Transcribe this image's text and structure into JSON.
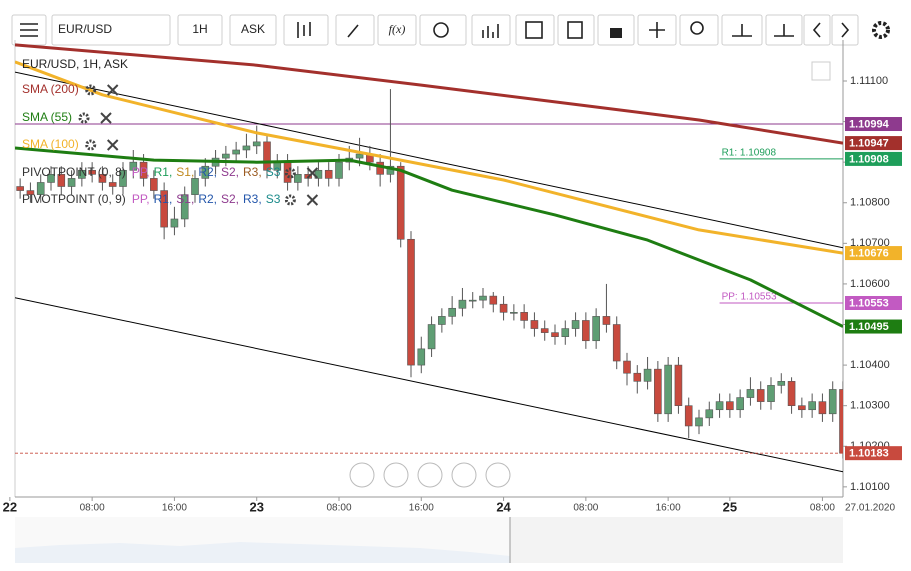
{
  "toolbar": {
    "symbol": "EUR/USD",
    "interval": "1H",
    "side": "ASK",
    "fx": "f(x)"
  },
  "chart_data": {
    "type": "candlestick",
    "title": "EUR/USD, 1H, ASK",
    "date_label": "27.01.2020",
    "up_color": "#5f9e74",
    "down_color": "#c84a3e",
    "xlim": [
      0.5,
      81
    ],
    "ylim": [
      1.10075,
      1.11201
    ],
    "xticks": [
      {
        "value": 0,
        "label": "22"
      },
      {
        "value": 8,
        "label": "08:00"
      },
      {
        "value": 16,
        "label": "16:00"
      },
      {
        "value": 24,
        "label": "23"
      },
      {
        "value": 32,
        "label": "08:00"
      },
      {
        "value": 40,
        "label": "16:00"
      },
      {
        "value": 48,
        "label": "24"
      },
      {
        "value": 56,
        "label": "08:00"
      },
      {
        "value": 64,
        "label": "16:00"
      },
      {
        "value": 70,
        "label": "25"
      },
      {
        "value": 79,
        "label": "08:00"
      }
    ],
    "yticks": [
      {
        "value": 1.101,
        "label": "1.10100"
      },
      {
        "value": 1.102,
        "label": "1.10200"
      },
      {
        "value": 1.103,
        "label": "1.10300"
      },
      {
        "value": 1.104,
        "label": "1.10400"
      },
      {
        "value": 1.105,
        "label": "1.10500"
      },
      {
        "value": 1.106,
        "label": "1.10600"
      },
      {
        "value": 1.107,
        "label": "1.10700"
      },
      {
        "value": 1.108,
        "label": "1.10800"
      },
      {
        "value": 1.109,
        "label": "1.10900"
      },
      {
        "value": 1.11,
        "label": "1.11000"
      },
      {
        "value": 1.111,
        "label": "1.11100"
      }
    ],
    "x": [
      1,
      2,
      3,
      4,
      5,
      6,
      7,
      8,
      9,
      10,
      11,
      12,
      13,
      14,
      15,
      16,
      17,
      18,
      19,
      20,
      21,
      22,
      23,
      24,
      25,
      26,
      27,
      28,
      29,
      30,
      31,
      32,
      33,
      34,
      35,
      36,
      37,
      38,
      39,
      40,
      41,
      42,
      43,
      44,
      45,
      46,
      47,
      48,
      49,
      50,
      51,
      52,
      53,
      54,
      55,
      56,
      57,
      58,
      59,
      60,
      61,
      62,
      63,
      64,
      65,
      66,
      67,
      68,
      69,
      70,
      71,
      72,
      73,
      74,
      75,
      76,
      77,
      78,
      79,
      80,
      81
    ],
    "ohlc": [
      [
        1.1084,
        1.1086,
        1.1081,
        1.1083
      ],
      [
        1.1083,
        1.1085,
        1.108,
        1.1082
      ],
      [
        1.1082,
        1.1087,
        1.108,
        1.1085
      ],
      [
        1.1085,
        1.1089,
        1.1083,
        1.1087
      ],
      [
        1.1087,
        1.1089,
        1.1082,
        1.1084
      ],
      [
        1.1084,
        1.1088,
        1.1082,
        1.1086
      ],
      [
        1.1086,
        1.109,
        1.1084,
        1.1088
      ],
      [
        1.1088,
        1.109,
        1.1085,
        1.1087
      ],
      [
        1.1087,
        1.1089,
        1.1083,
        1.1085
      ],
      [
        1.1085,
        1.1087,
        1.1082,
        1.1084
      ],
      [
        1.1084,
        1.109,
        1.1082,
        1.1088
      ],
      [
        1.1088,
        1.1093,
        1.1086,
        1.109
      ],
      [
        1.109,
        1.1092,
        1.1084,
        1.1086
      ],
      [
        1.1086,
        1.1088,
        1.1081,
        1.1083
      ],
      [
        1.1083,
        1.1085,
        1.1071,
        1.1074
      ],
      [
        1.1074,
        1.1079,
        1.1072,
        1.1076
      ],
      [
        1.1076,
        1.1084,
        1.1074,
        1.1082
      ],
      [
        1.1082,
        1.1088,
        1.108,
        1.1086
      ],
      [
        1.1086,
        1.1091,
        1.1084,
        1.1089
      ],
      [
        1.1089,
        1.1093,
        1.1087,
        1.1091
      ],
      [
        1.1091,
        1.1094,
        1.1089,
        1.1092
      ],
      [
        1.1092,
        1.1095,
        1.109,
        1.1093
      ],
      [
        1.1093,
        1.1097,
        1.1091,
        1.1094
      ],
      [
        1.1094,
        1.1099,
        1.1092,
        1.1095
      ],
      [
        1.1095,
        1.1097,
        1.1086,
        1.1088
      ],
      [
        1.1088,
        1.1092,
        1.1086,
        1.109
      ],
      [
        1.109,
        1.1092,
        1.1083,
        1.1085
      ],
      [
        1.1085,
        1.1089,
        1.1083,
        1.1087
      ],
      [
        1.1087,
        1.1089,
        1.1084,
        1.1086
      ],
      [
        1.1086,
        1.109,
        1.1084,
        1.1088
      ],
      [
        1.1088,
        1.109,
        1.1084,
        1.1086
      ],
      [
        1.1086,
        1.1092,
        1.1084,
        1.109
      ],
      [
        1.109,
        1.1094,
        1.1088,
        1.1091
      ],
      [
        1.1091,
        1.1096,
        1.1089,
        1.1092
      ],
      [
        1.1092,
        1.1094,
        1.1088,
        1.109
      ],
      [
        1.109,
        1.1092,
        1.1084,
        1.1087
      ],
      [
        1.1087,
        1.1108,
        1.1085,
        1.1089
      ],
      [
        1.1089,
        1.109,
        1.1069,
        1.1071
      ],
      [
        1.1071,
        1.1073,
        1.1037,
        1.104
      ],
      [
        1.104,
        1.1047,
        1.1038,
        1.1044
      ],
      [
        1.1044,
        1.1052,
        1.1042,
        1.105
      ],
      [
        1.105,
        1.1054,
        1.1048,
        1.1052
      ],
      [
        1.1052,
        1.1057,
        1.105,
        1.1054
      ],
      [
        1.1054,
        1.1059,
        1.1052,
        1.1056
      ],
      [
        1.1056,
        1.1058,
        1.1054,
        1.1056
      ],
      [
        1.1056,
        1.1059,
        1.1054,
        1.1057
      ],
      [
        1.1057,
        1.1058,
        1.1053,
        1.1055
      ],
      [
        1.1055,
        1.1057,
        1.1051,
        1.1053
      ],
      [
        1.1053,
        1.1055,
        1.1051,
        1.1053
      ],
      [
        1.1053,
        1.1055,
        1.1049,
        1.1051
      ],
      [
        1.1051,
        1.1053,
        1.1047,
        1.1049
      ],
      [
        1.1049,
        1.1051,
        1.1046,
        1.1048
      ],
      [
        1.1048,
        1.105,
        1.1045,
        1.1047
      ],
      [
        1.1047,
        1.1051,
        1.1045,
        1.1049
      ],
      [
        1.1049,
        1.1053,
        1.1047,
        1.1051
      ],
      [
        1.1051,
        1.1053,
        1.1044,
        1.1046
      ],
      [
        1.1046,
        1.1054,
        1.1044,
        1.1052
      ],
      [
        1.1052,
        1.106,
        1.1048,
        1.105
      ],
      [
        1.105,
        1.1052,
        1.1039,
        1.1041
      ],
      [
        1.1041,
        1.1043,
        1.1035,
        1.1038
      ],
      [
        1.1038,
        1.104,
        1.1033,
        1.1036
      ],
      [
        1.1036,
        1.1042,
        1.1034,
        1.1039
      ],
      [
        1.1039,
        1.1041,
        1.1026,
        1.1028
      ],
      [
        1.1028,
        1.1042,
        1.1026,
        1.104
      ],
      [
        1.104,
        1.1042,
        1.1028,
        1.103
      ],
      [
        1.103,
        1.1032,
        1.1022,
        1.1025
      ],
      [
        1.1025,
        1.1029,
        1.1023,
        1.1027
      ],
      [
        1.1027,
        1.1031,
        1.1025,
        1.1029
      ],
      [
        1.1029,
        1.1033,
        1.1027,
        1.1031
      ],
      [
        1.1031,
        1.1033,
        1.1027,
        1.1029
      ],
      [
        1.1029,
        1.1034,
        1.1027,
        1.1032
      ],
      [
        1.1032,
        1.1037,
        1.103,
        1.1034
      ],
      [
        1.1034,
        1.1036,
        1.1029,
        1.1031
      ],
      [
        1.1031,
        1.1037,
        1.1029,
        1.1035
      ],
      [
        1.1035,
        1.1038,
        1.1033,
        1.1036
      ],
      [
        1.1036,
        1.1037,
        1.1028,
        1.103
      ],
      [
        1.103,
        1.1032,
        1.1027,
        1.1029
      ],
      [
        1.1029,
        1.1033,
        1.1027,
        1.1031
      ],
      [
        1.1031,
        1.1033,
        1.1026,
        1.1028
      ],
      [
        1.1028,
        1.1036,
        1.1026,
        1.1034
      ],
      [
        1.1034,
        1.1036,
        1.1017,
        1.10183
      ]
    ],
    "series": [
      {
        "name": "SMA (200)",
        "color": "#a3302c",
        "x": [
          0.5,
          24,
          40,
          57,
          67,
          81
        ],
        "values": [
          1.11189,
          1.11139,
          1.1109,
          1.11036,
          1.11004,
          1.10947
        ]
      },
      {
        "name": "SMA (55)",
        "color": "#1e7d12",
        "x": [
          0.5,
          14,
          24,
          33,
          38,
          43,
          53,
          62,
          72,
          81
        ],
        "values": [
          1.10935,
          1.10905,
          1.109,
          1.10905,
          1.1088,
          1.10831,
          1.1077,
          1.10708,
          1.1061,
          1.10495
        ]
      },
      {
        "name": "SMA (100)",
        "color": "#f2b32a",
        "x": [
          0.5,
          9,
          24,
          38,
          48,
          67,
          81
        ],
        "values": [
          1.11147,
          1.11066,
          1.10972,
          1.10905,
          1.10856,
          1.10733,
          1.10676
        ]
      }
    ],
    "trendlines": [
      {
        "color": "#000000",
        "x": [
          0.5,
          81
        ],
        "values": [
          1.11122,
          1.10689
        ]
      },
      {
        "color": "#000000",
        "x": [
          0.5,
          81
        ],
        "values": [
          1.10566,
          1.10137
        ]
      }
    ],
    "hlines": [
      {
        "value": 1.10994,
        "color": "#8e3a8e",
        "x_from": 0.5
      },
      {
        "value": 1.10908,
        "color": "#1e9e5a",
        "x_from": 69,
        "label": "R1: 1.10908"
      },
      {
        "value": 1.10553,
        "color": "#c25ac2",
        "x_from": 69,
        "label": "PP: 1.10553"
      }
    ],
    "pivot_legends": [
      {
        "name": "PIVOTPOINT (0, 8)",
        "items": [
          {
            "text": "PP,",
            "color": "#c25ac2"
          },
          {
            "text": "R1,",
            "color": "#1e9e5a"
          },
          {
            "text": "S1,",
            "color": "#c08a20"
          },
          {
            "text": "R2,",
            "color": "#2255aa"
          },
          {
            "text": "S2,",
            "color": "#8e3a8e"
          },
          {
            "text": "R3,",
            "color": "#9a5a20"
          },
          {
            "text": "S3",
            "color": "#1a8a8a"
          }
        ]
      },
      {
        "name": "PIVOTPOINT (0, 9)",
        "items": [
          {
            "text": "PP,",
            "color": "#c25ac2"
          },
          {
            "text": "R1,",
            "color": "#2255aa"
          },
          {
            "text": "S1,",
            "color": "#8e3a8e"
          },
          {
            "text": "R2,",
            "color": "#2255aa"
          },
          {
            "text": "S2,",
            "color": "#8e3a8e"
          },
          {
            "text": "R3,",
            "color": "#2255aa"
          },
          {
            "text": "S3",
            "color": "#1a8a8a"
          }
        ]
      }
    ]
  }
}
